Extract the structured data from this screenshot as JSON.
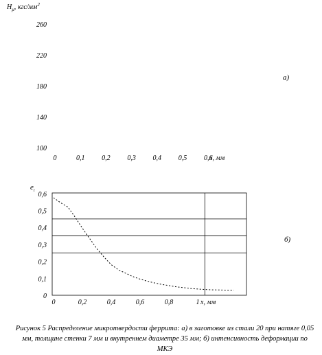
{
  "chart_data": [
    {
      "type": "line",
      "panel_label": "а)",
      "ylabel_main": "H",
      "ylabel_sub": "μ",
      "ylabel_units": ", кгс/мм",
      "ylabel_sup": "2",
      "yticks": [
        "260",
        "220",
        "180",
        "140",
        "100"
      ],
      "ylim": [
        100,
        260
      ],
      "xticks": [
        "0",
        "0,1",
        "0,2",
        "0,3",
        "0,4",
        "0,5",
        "0,6"
      ],
      "xunit": "x, мм",
      "xlim": [
        0,
        0.6
      ],
      "series": []
    },
    {
      "type": "line",
      "panel_label": "б)",
      "ylabel_main": "e",
      "ylabel_sub": "i",
      "yticks": [
        "0,6",
        "0,5",
        "0,4",
        "0,3",
        "0,2",
        "0,1",
        "0"
      ],
      "ylim": [
        0,
        0.6
      ],
      "xticks": [
        "0",
        "0,2",
        "0,4",
        "0,6",
        "0,8",
        "1"
      ],
      "xunit": "x, мм",
      "xlim": [
        0,
        1.3
      ],
      "hlines": [
        0.45,
        0.35,
        0.25
      ],
      "vline": 1.05,
      "series": [
        {
          "x": [
            0,
            0.05,
            0.1,
            0.15,
            0.2,
            0.25,
            0.3,
            0.35,
            0.4,
            0.45,
            0.5,
            0.55,
            0.6,
            0.65,
            0.7,
            0.75,
            0.8,
            0.85,
            0.9,
            0.95,
            1.0,
            1.05,
            1.1,
            1.15,
            1.2,
            1.25
          ],
          "y": [
            0.575,
            0.545,
            0.52,
            0.46,
            0.395,
            0.335,
            0.275,
            0.225,
            0.18,
            0.15,
            0.13,
            0.11,
            0.095,
            0.083,
            0.073,
            0.064,
            0.057,
            0.05,
            0.045,
            0.04,
            0.037,
            0.034,
            0.032,
            0.031,
            0.03,
            0.03
          ]
        }
      ]
    }
  ],
  "caption": "Рисунок 5  Распределение микротвердости феррита: а) в заготовке из стали 20 при натяге 0,05 мм, толщине стенки 7 мм и внутреннем диаметре 35 мм; б) интенсивность деформации по МКЭ"
}
